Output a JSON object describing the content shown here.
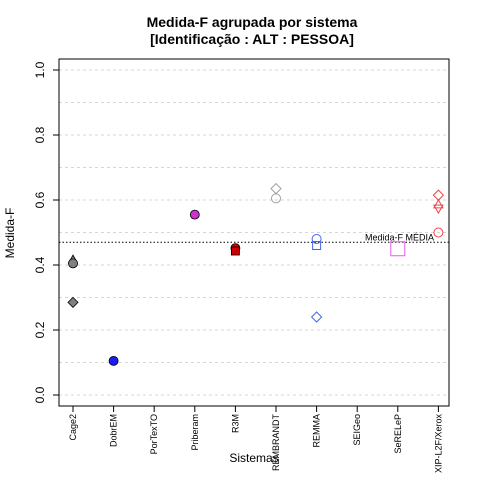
{
  "chart_data": {
    "type": "scatter",
    "title": "Medida-F agrupada por sistema",
    "subtitle": "[Identificação : ALT : PESSOA]",
    "xlabel": "Sistemas",
    "ylabel": "Medida-F",
    "ylim": [
      0.0,
      1.0
    ],
    "yticks": [
      "0.0",
      "0.2",
      "0.4",
      "0.6",
      "0.8",
      "1.0"
    ],
    "grid": true,
    "categories": [
      "Cage2",
      "DobrEM",
      "PorTexTO",
      "Priberam",
      "R3M",
      "REMBRANDT",
      "REMMA",
      "SEIGeo",
      "SeRELeP",
      "XIP-L2F/Xerox"
    ],
    "reference_line": {
      "value": 0.47,
      "label": "Medida-F MÉDIA"
    },
    "points": [
      {
        "category": "Cage2",
        "value": 0.415,
        "shape": "triangle",
        "color": "#808080",
        "filled": true
      },
      {
        "category": "Cage2",
        "value": 0.405,
        "shape": "circle",
        "color": "#808080",
        "filled": true
      },
      {
        "category": "Cage2",
        "value": 0.285,
        "shape": "diamond",
        "color": "#808080",
        "filled": true
      },
      {
        "category": "DobrEM",
        "value": 0.105,
        "shape": "circle",
        "color": "#1a1aff",
        "filled": true
      },
      {
        "category": "Priberam",
        "value": 0.555,
        "shape": "circle",
        "color": "#cc33cc",
        "filled": true
      },
      {
        "category": "R3M",
        "value": 0.452,
        "shape": "circle",
        "color": "#cc0000",
        "filled": true
      },
      {
        "category": "R3M",
        "value": 0.443,
        "shape": "square",
        "color": "#cc0000",
        "filled": true
      },
      {
        "category": "REMBRANDT",
        "value": 0.635,
        "shape": "diamond",
        "color": "#a0a0a0",
        "filled": false
      },
      {
        "category": "REMBRANDT",
        "value": 0.605,
        "shape": "circle",
        "color": "#a0a0a0",
        "filled": false
      },
      {
        "category": "REMMA",
        "value": 0.48,
        "shape": "circle",
        "color": "#4466ee",
        "filled": false
      },
      {
        "category": "REMMA",
        "value": 0.46,
        "shape": "square",
        "color": "#4466ee",
        "filled": false
      },
      {
        "category": "REMMA",
        "value": 0.24,
        "shape": "diamond",
        "color": "#4466ee",
        "filled": false
      },
      {
        "category": "SeRELeP",
        "value": 0.45,
        "shape": "bigsquare",
        "color": "#ee55ee",
        "filled": false
      },
      {
        "category": "XIP-L2F/Xerox",
        "value": 0.615,
        "shape": "diamond",
        "color": "#ee4444",
        "filled": false
      },
      {
        "category": "XIP-L2F/Xerox",
        "value": 0.585,
        "shape": "triangle",
        "color": "#ee4444",
        "filled": false
      },
      {
        "category": "XIP-L2F/Xerox",
        "value": 0.575,
        "shape": "triangle-down",
        "color": "#ee4444",
        "filled": false
      },
      {
        "category": "XIP-L2F/Xerox",
        "value": 0.5,
        "shape": "circle",
        "color": "#ee4444",
        "filled": false
      }
    ]
  }
}
